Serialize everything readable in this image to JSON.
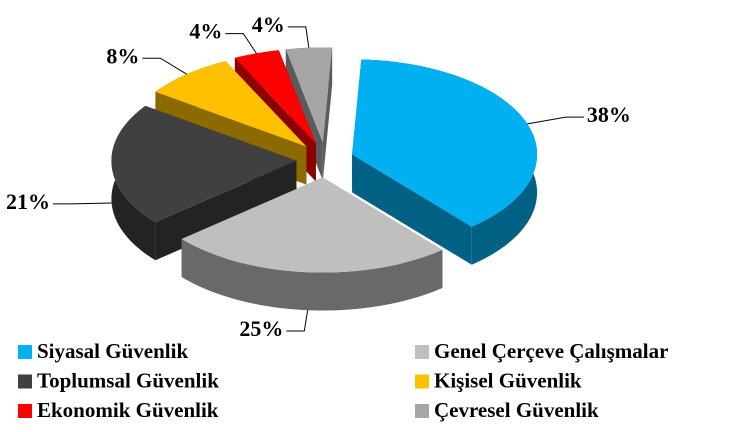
{
  "chart_data": {
    "type": "pie",
    "categories": [
      "Siyasal Güvenlik",
      "Genel Çerçeve Çalışmalar",
      "Toplumsal Güvenlik",
      "Kişisel Güvenlik",
      "Ekonomik Güvenlik",
      "Çevresel Güvenlik"
    ],
    "values": [
      38,
      25,
      21,
      8,
      4,
      4
    ],
    "value_labels": [
      "38%",
      "25%",
      "21%",
      "8%",
      "4%",
      "4%"
    ],
    "colors": [
      "#00b0f0",
      "#bfbfbf",
      "#404040",
      "#ffc000",
      "#ff0000",
      "#a6a6a6"
    ]
  }
}
